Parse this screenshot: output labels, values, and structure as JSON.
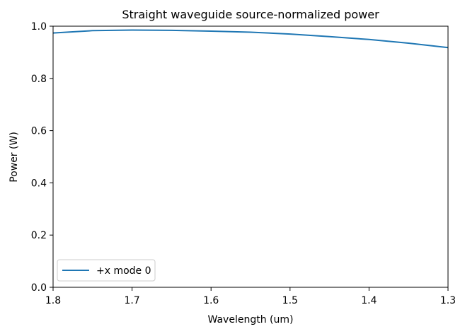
{
  "chart_data": {
    "type": "line",
    "title": "Straight waveguide source-normalized power",
    "xlabel": "Wavelength (um)",
    "ylabel": "Power (W)",
    "xlim": [
      1.8,
      1.3
    ],
    "ylim": [
      0.0,
      1.0
    ],
    "x_reversed": true,
    "xticks": [
      "1.8",
      "1.7",
      "1.6",
      "1.5",
      "1.4",
      "1.3"
    ],
    "yticks": [
      "0.0",
      "0.2",
      "0.4",
      "0.6",
      "0.8",
      "1.0"
    ],
    "grid": false,
    "legend_position": "lower-left",
    "series": [
      {
        "name": "+x mode 0",
        "color": "#1f77b4",
        "x": [
          1.8,
          1.75,
          1.7,
          1.65,
          1.6,
          1.55,
          1.5,
          1.45,
          1.4,
          1.35,
          1.3
        ],
        "y": [
          0.974,
          0.983,
          0.985,
          0.984,
          0.981,
          0.977,
          0.97,
          0.96,
          0.949,
          0.935,
          0.918
        ]
      }
    ]
  }
}
